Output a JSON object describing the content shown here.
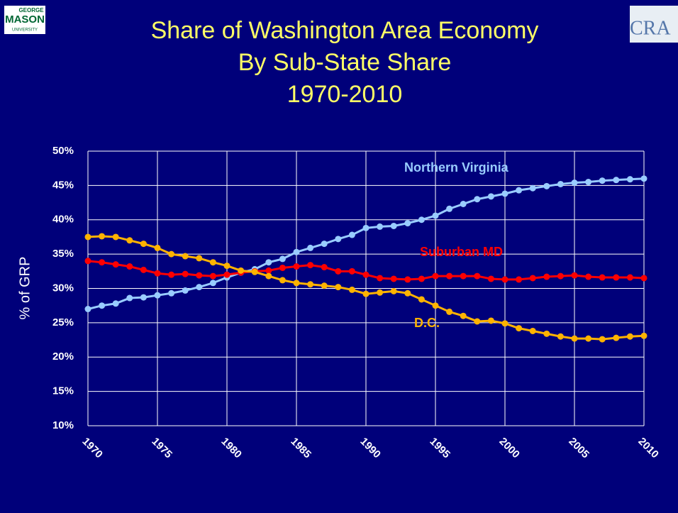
{
  "logos": {
    "left": [
      "GEORGE",
      "MASON",
      "UNIVERSITY"
    ],
    "right": "CRA"
  },
  "chart_data": {
    "type": "line",
    "title": [
      "Share of Washington Area Economy",
      "By Sub-State Share",
      "1970-2010"
    ],
    "y_label": "% of GRP",
    "x": [
      1970,
      1971,
      1972,
      1973,
      1974,
      1975,
      1976,
      1977,
      1978,
      1979,
      1980,
      1981,
      1982,
      1983,
      1984,
      1985,
      1986,
      1987,
      1988,
      1989,
      1990,
      1991,
      1992,
      1993,
      1994,
      1995,
      1996,
      1997,
      1998,
      1999,
      2000,
      2001,
      2002,
      2003,
      2004,
      2005,
      2006,
      2007,
      2008,
      2009,
      2010
    ],
    "xlim": [
      1970,
      2010
    ],
    "xticks": [
      1970,
      1975,
      1980,
      1985,
      1990,
      1995,
      2000,
      2005,
      2010
    ],
    "ylim": [
      10,
      50
    ],
    "yticks": [
      {
        "value": 10,
        "label": "10%"
      },
      {
        "value": 15,
        "label": "15%"
      },
      {
        "value": 20,
        "label": "20%"
      },
      {
        "value": 25,
        "label": "25%"
      },
      {
        "value": 30,
        "label": "30%"
      },
      {
        "value": 35,
        "label": "35%"
      },
      {
        "value": 40,
        "label": "40%"
      },
      {
        "value": 45,
        "label": "45%"
      },
      {
        "value": 50,
        "label": "50%"
      }
    ],
    "grid": true,
    "series": [
      {
        "name": "Northern Virginia",
        "color": "#99ccff",
        "values": [
          27.0,
          27.5,
          27.8,
          28.6,
          28.7,
          29.0,
          29.3,
          29.7,
          30.2,
          30.8,
          31.6,
          32.3,
          32.8,
          33.8,
          34.3,
          35.3,
          35.9,
          36.5,
          37.2,
          37.8,
          38.8,
          39.0,
          39.1,
          39.5,
          40.0,
          40.6,
          41.6,
          42.3,
          43.0,
          43.4,
          43.8,
          44.3,
          44.6,
          44.9,
          45.2,
          45.4,
          45.5,
          45.7,
          45.8,
          45.9,
          46.0
        ]
      },
      {
        "name": "Suburban MD",
        "color": "#ff0000",
        "values": [
          34.0,
          33.8,
          33.5,
          33.2,
          32.7,
          32.2,
          32.0,
          32.1,
          31.9,
          31.8,
          32.0,
          32.3,
          32.5,
          32.6,
          33.0,
          33.2,
          33.4,
          33.1,
          32.5,
          32.5,
          32.0,
          31.5,
          31.4,
          31.3,
          31.4,
          31.8,
          31.8,
          31.8,
          31.8,
          31.4,
          31.3,
          31.3,
          31.5,
          31.7,
          31.8,
          31.9,
          31.7,
          31.6,
          31.6,
          31.6,
          31.5
        ]
      },
      {
        "name": "D.C.",
        "color": "#ffb300",
        "values": [
          37.5,
          37.6,
          37.5,
          37.0,
          36.5,
          35.9,
          35.0,
          34.7,
          34.4,
          33.8,
          33.3,
          32.6,
          32.4,
          31.8,
          31.2,
          30.8,
          30.6,
          30.4,
          30.2,
          29.8,
          29.2,
          29.4,
          29.6,
          29.3,
          28.4,
          27.5,
          26.6,
          26.0,
          25.2,
          25.3,
          24.9,
          24.2,
          23.8,
          23.4,
          23.0,
          22.7,
          22.7,
          22.6,
          22.8,
          23.0,
          23.1
        ]
      }
    ]
  }
}
